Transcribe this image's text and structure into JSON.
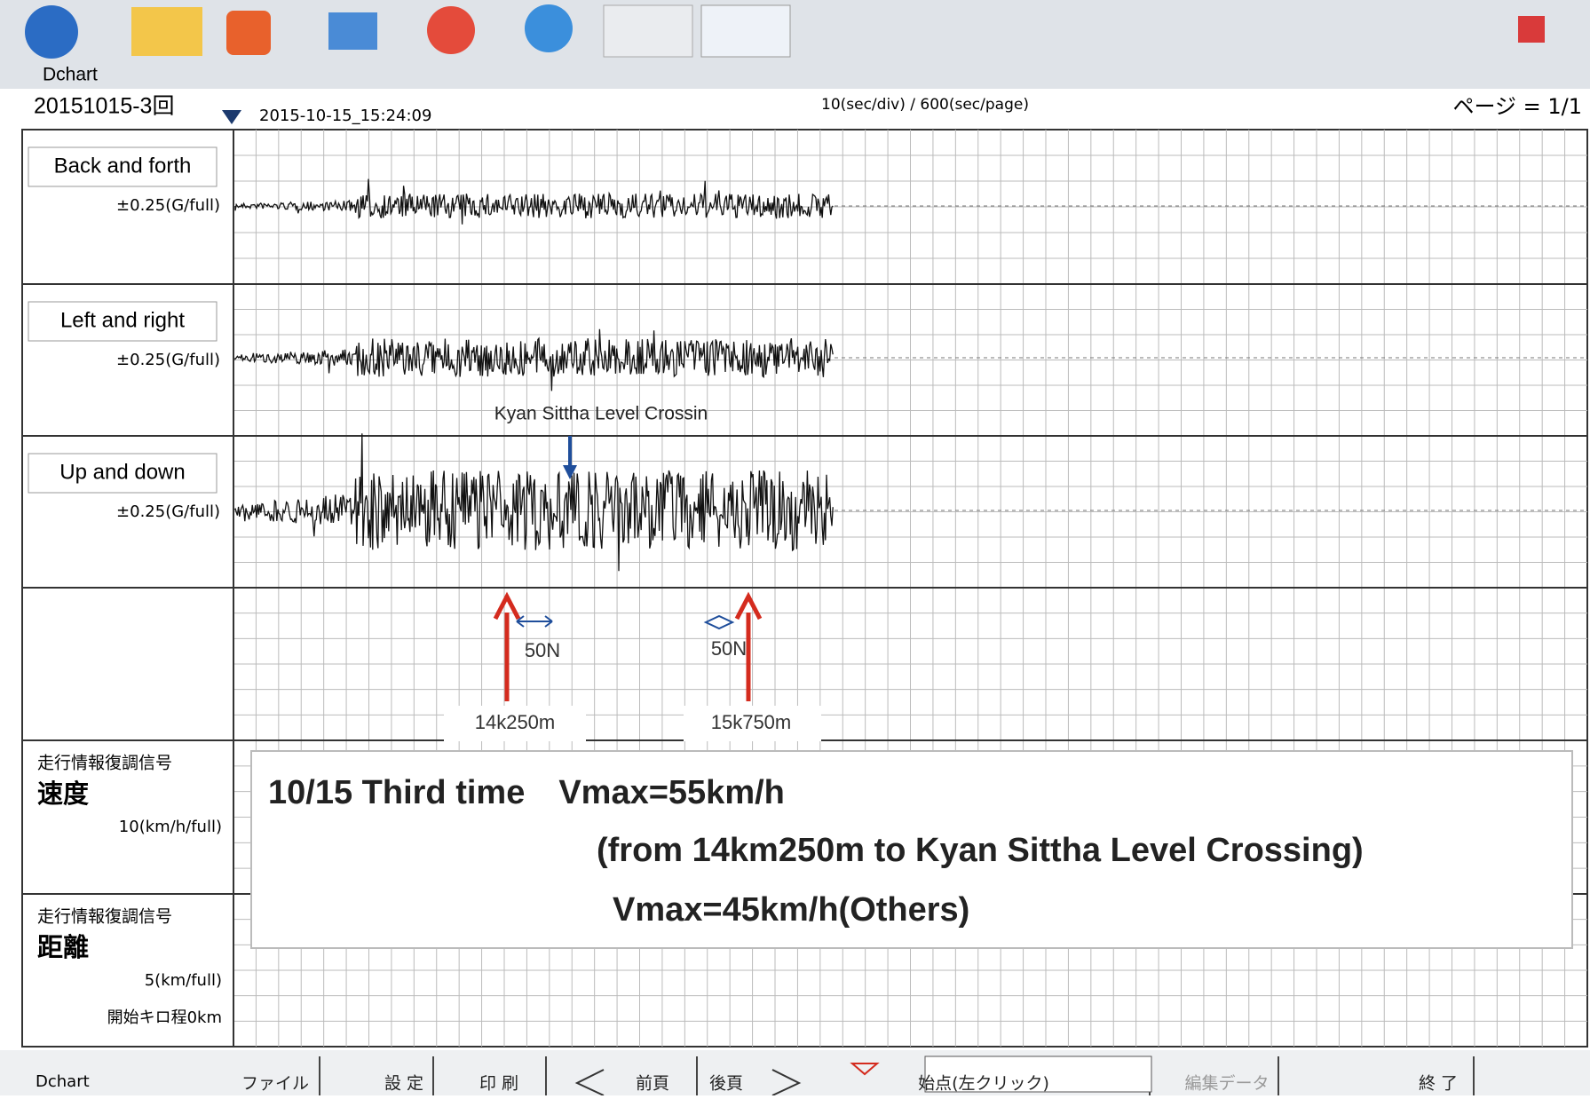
{
  "window": {
    "app_name": "Dchart"
  },
  "header": {
    "file": "20151015-3回",
    "timestamp": "2015-10-15_15:24:09",
    "scale": "10(sec/div) / 600(sec/page)",
    "page": "ページ = 1/1"
  },
  "channels": [
    {
      "name": "Back and forth",
      "range": "±0.25(G/full)"
    },
    {
      "name": "Left and right",
      "range": "±0.25(G/full)"
    },
    {
      "name": "Up and down",
      "range": "±0.25(G/full)"
    },
    {
      "signal": "走行情報復調信号",
      "name": "速度",
      "range": "10(km/h/full)"
    },
    {
      "signal": "走行情報復調信号",
      "name": "距離",
      "range": "5(km/full)",
      "start": "開始キロ程0km"
    }
  ],
  "annotations": {
    "crossing": "Kyan Sittha Level Crossin",
    "force_1": "50N",
    "force_2": "50N",
    "location_1": "14k250m",
    "location_2": "15k750m"
  },
  "note": {
    "lines": [
      "10/15 Third time　Vmax=55km/h",
      "(from 14km250m to Kyan Sittha Level Crossing)",
      "Vmax=45km/h(Others)"
    ]
  },
  "toolbar": {
    "status": "Dchart",
    "buttons": [
      "ファイル",
      "設 定",
      "印 刷",
      "前頁",
      "後頁",
      "始点(左クリック)",
      "編集データ",
      "終 了"
    ]
  }
}
